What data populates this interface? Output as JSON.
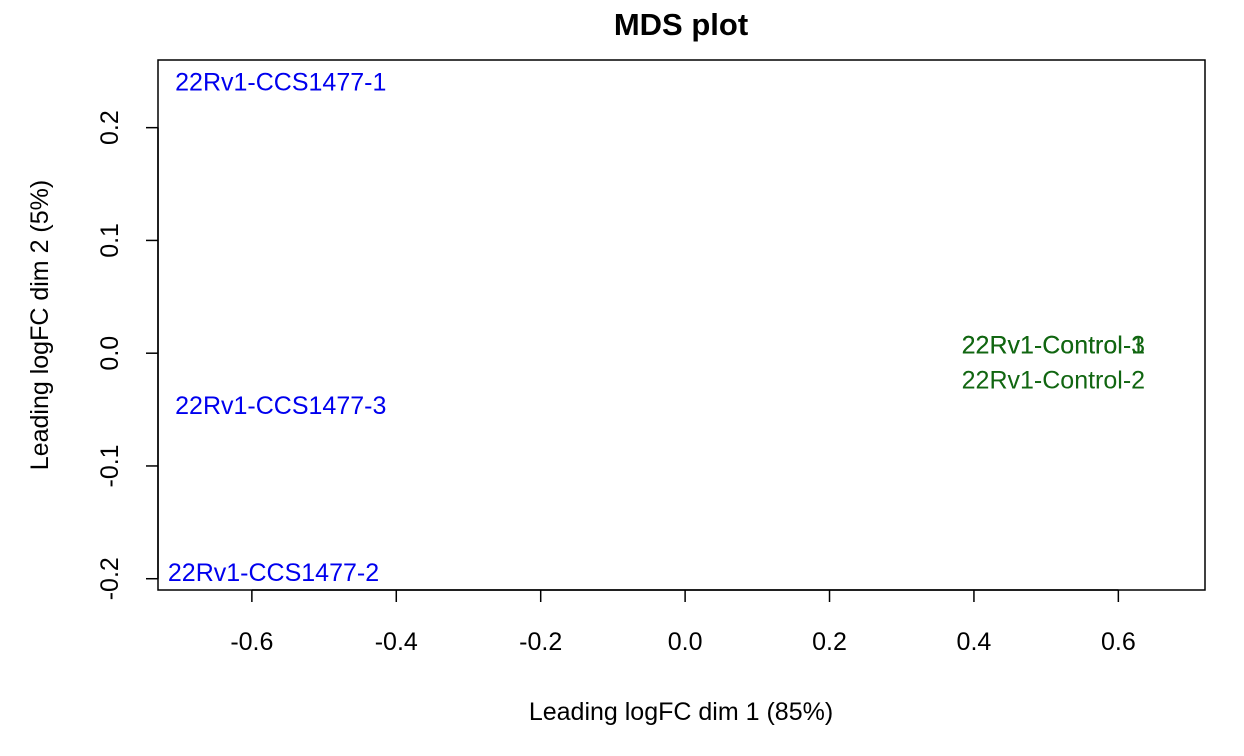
{
  "chart_data": {
    "type": "scatter",
    "title": "MDS plot",
    "xlabel": "Leading logFC dim 1 (85%)",
    "ylabel": "Leading logFC dim 2 (5%)",
    "xlim": [
      -0.73,
      0.72
    ],
    "ylim": [
      -0.21,
      0.26
    ],
    "xticks": [
      -0.6,
      -0.4,
      -0.2,
      0.0,
      0.2,
      0.4,
      0.6
    ],
    "xtick_labels": [
      "-0.6",
      "-0.4",
      "-0.2",
      "0.0",
      "0.2",
      "0.4",
      "0.6"
    ],
    "yticks": [
      -0.2,
      -0.1,
      0.0,
      0.1,
      0.2
    ],
    "ytick_labels": [
      "-0.2",
      "-0.1",
      "0.0",
      "0.1",
      "0.2"
    ],
    "grid": false,
    "colors": {
      "CCS1477": "#0000ee",
      "Control": "#116611"
    },
    "points": [
      {
        "label": "22Rv1-CCS1477-1",
        "x": -0.56,
        "y": 0.24,
        "group": "CCS1477"
      },
      {
        "label": "22Rv1-CCS1477-2",
        "x": -0.57,
        "y": -0.195,
        "group": "CCS1477"
      },
      {
        "label": "22Rv1-CCS1477-3",
        "x": -0.56,
        "y": -0.047,
        "group": "CCS1477"
      },
      {
        "label": "22Rv1-Control-1",
        "x": 0.51,
        "y": 0.007,
        "group": "Control"
      },
      {
        "label": "22Rv1-Control-2",
        "x": 0.51,
        "y": -0.024,
        "group": "Control"
      },
      {
        "label": "22Rv1-Control-3",
        "x": 0.51,
        "y": 0.007,
        "group": "Control"
      }
    ]
  }
}
